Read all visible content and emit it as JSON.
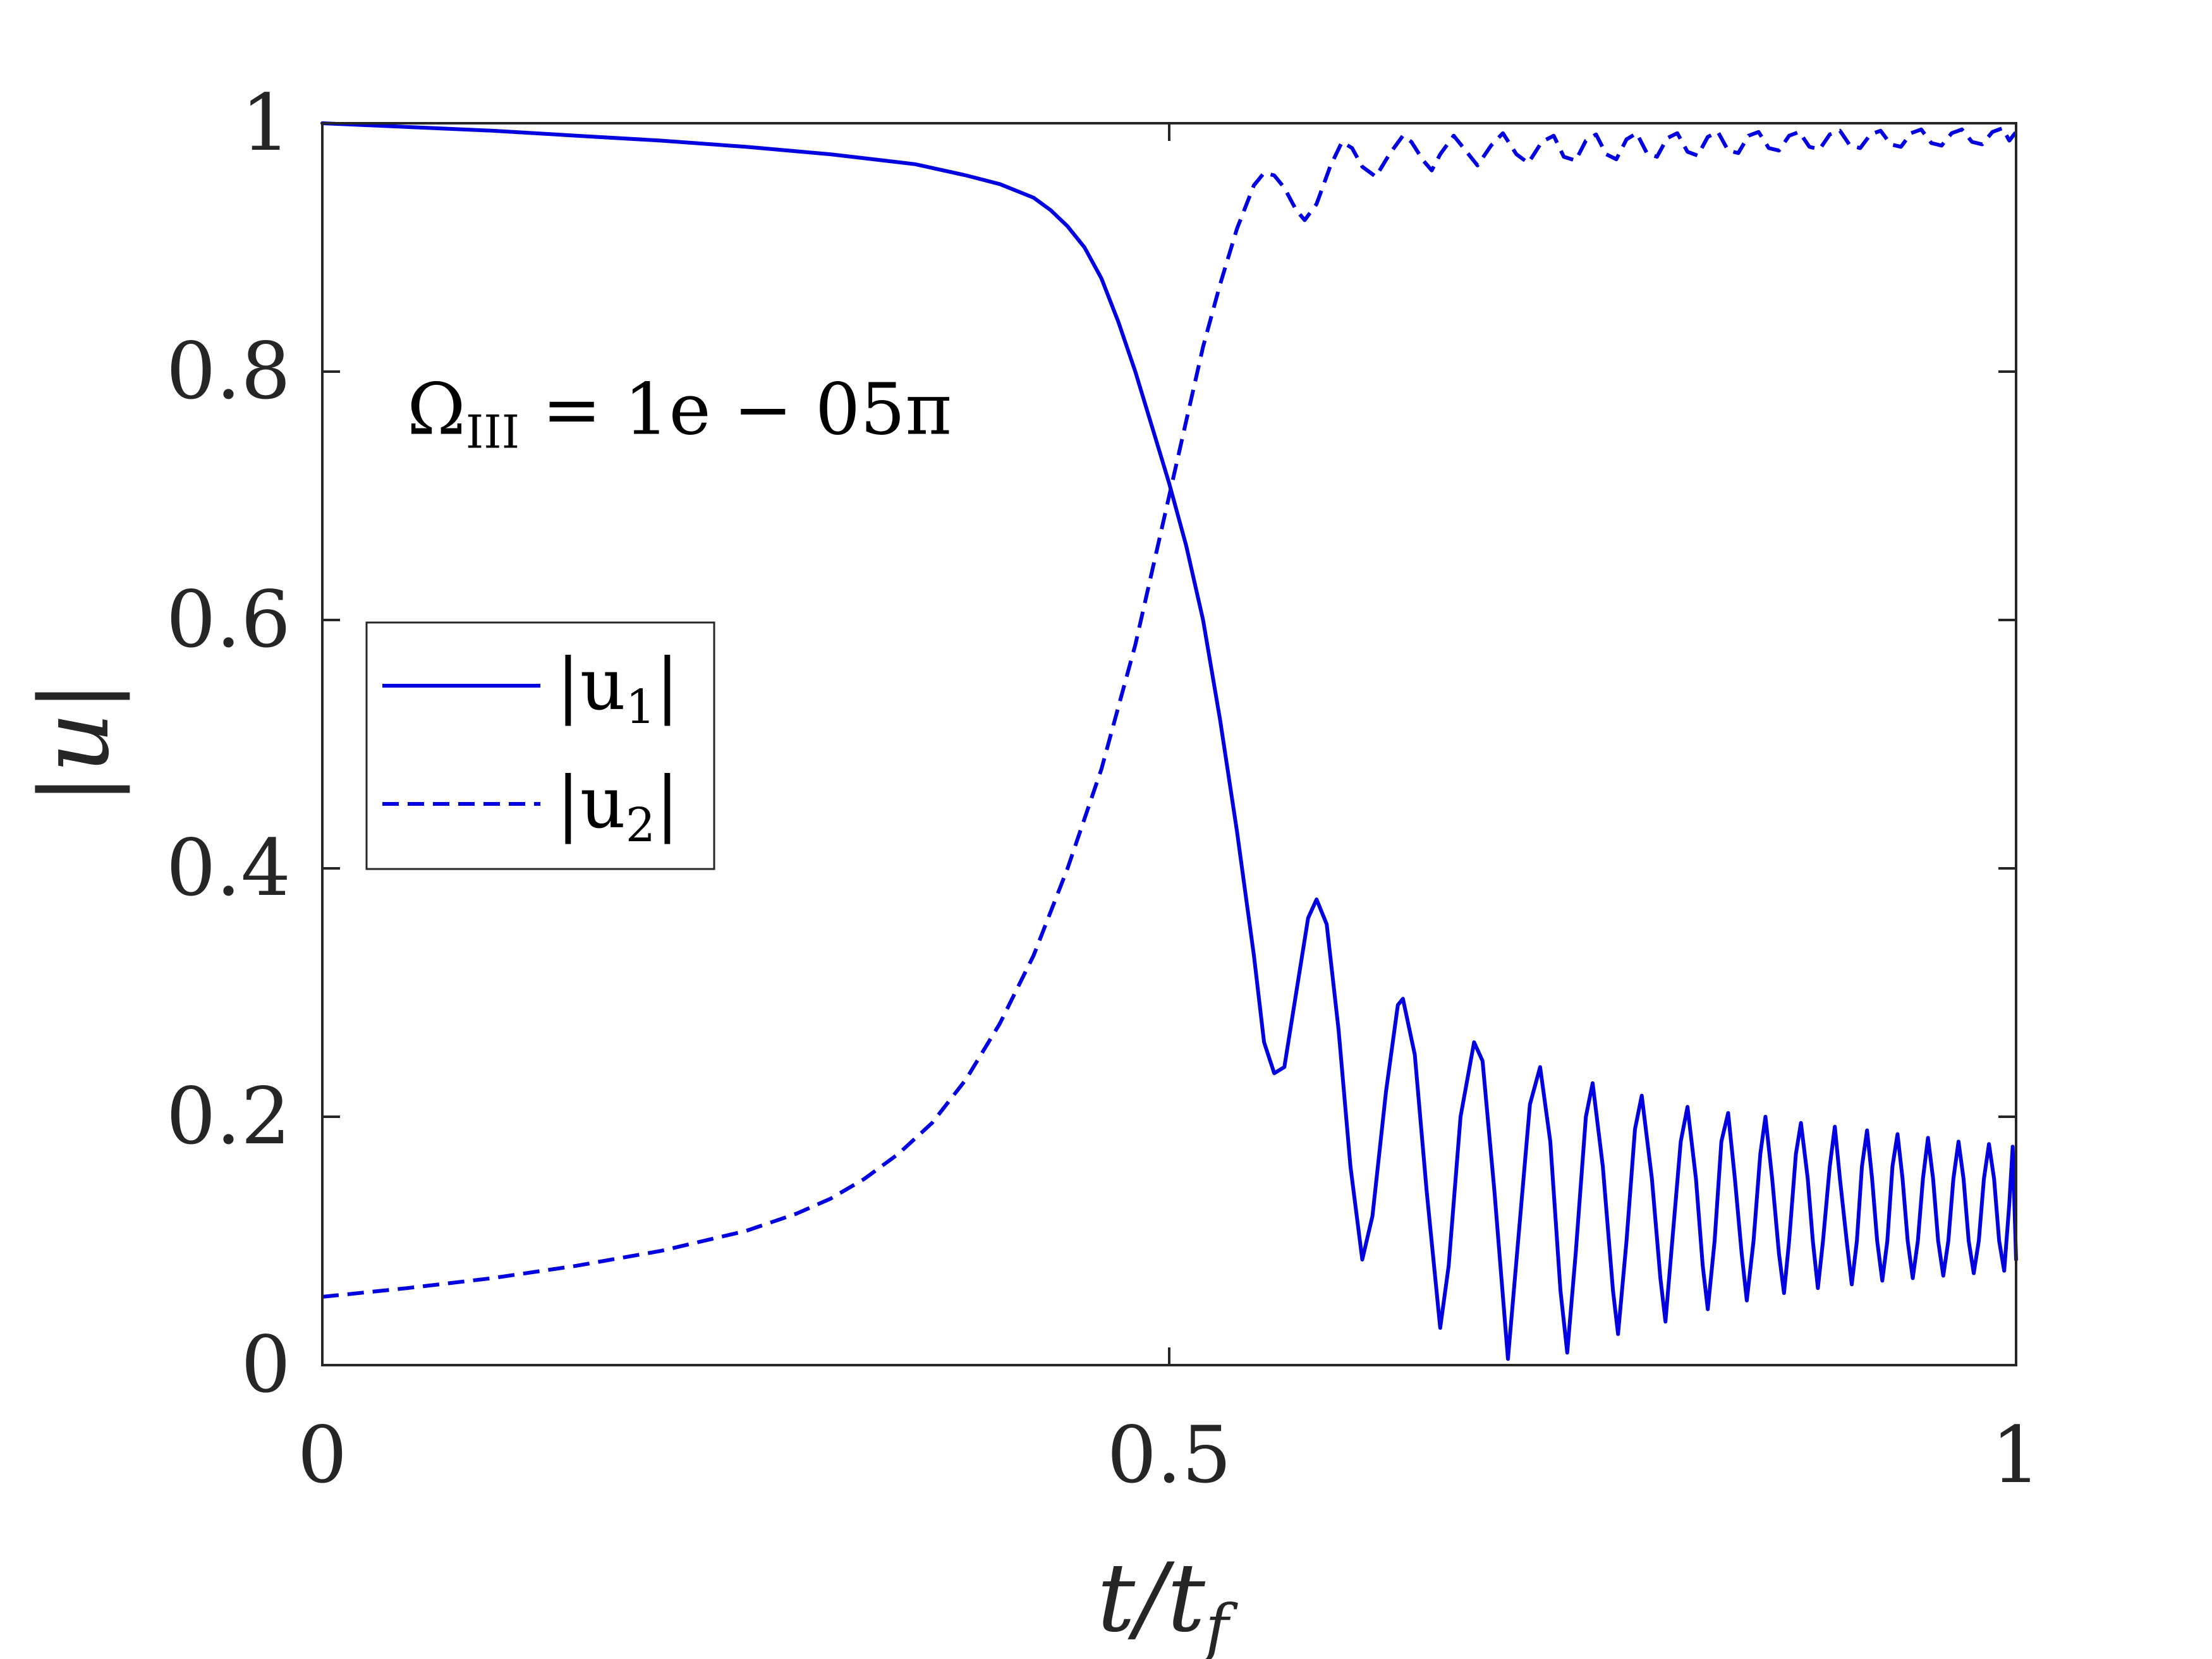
{
  "chart_data": {
    "type": "line",
    "xlabel": "t/t_f",
    "xlabel_parts": {
      "main": "t/t",
      "sub": "f"
    },
    "ylabel": "|u|",
    "xlim": [
      0,
      1
    ],
    "ylim": [
      0,
      1
    ],
    "xticks": [
      0,
      0.5,
      1
    ],
    "xtick_labels": [
      "0",
      "0.5",
      "1"
    ],
    "yticks": [
      0,
      0.2,
      0.4,
      0.6,
      0.8,
      1
    ],
    "ytick_labels": [
      "0",
      "0.2",
      "0.4",
      "0.6",
      "0.8",
      "1"
    ],
    "grid": false,
    "box": true,
    "annotation": {
      "text": "Ω_III = 1e − 05π",
      "symbol": "Ω",
      "subscript": "III",
      "rest": " = 1e − 05π",
      "x": 0.05,
      "y": 0.75
    },
    "legend": {
      "placement": "center-left",
      "entries": [
        {
          "label": "|u_1|",
          "base": "|u",
          "sub": "1",
          "close": "|",
          "style": "solid"
        },
        {
          "label": "|u_2|",
          "base": "|u",
          "sub": "2",
          "close": "|",
          "style": "dashed"
        }
      ]
    },
    "series": [
      {
        "label": "|u_1|",
        "color": "#0000e0",
        "style": "solid",
        "points": [
          [
            0.0,
            1.0
          ],
          [
            0.05,
            0.997
          ],
          [
            0.1,
            0.994
          ],
          [
            0.15,
            0.99
          ],
          [
            0.2,
            0.986
          ],
          [
            0.25,
            0.981
          ],
          [
            0.3,
            0.975
          ],
          [
            0.35,
            0.967
          ],
          [
            0.38,
            0.958
          ],
          [
            0.4,
            0.951
          ],
          [
            0.42,
            0.94
          ],
          [
            0.43,
            0.93
          ],
          [
            0.44,
            0.917
          ],
          [
            0.45,
            0.9
          ],
          [
            0.46,
            0.875
          ],
          [
            0.47,
            0.84
          ],
          [
            0.48,
            0.8
          ],
          [
            0.49,
            0.755
          ],
          [
            0.5,
            0.71
          ],
          [
            0.51,
            0.66
          ],
          [
            0.52,
            0.6
          ],
          [
            0.53,
            0.52
          ],
          [
            0.54,
            0.43
          ],
          [
            0.55,
            0.33
          ],
          [
            0.556,
            0.26
          ],
          [
            0.562,
            0.235
          ],
          [
            0.568,
            0.24
          ],
          [
            0.575,
            0.3
          ],
          [
            0.582,
            0.36
          ],
          [
            0.587,
            0.375
          ],
          [
            0.593,
            0.355
          ],
          [
            0.6,
            0.27
          ],
          [
            0.607,
            0.16
          ],
          [
            0.614,
            0.085
          ],
          [
            0.62,
            0.12
          ],
          [
            0.628,
            0.22
          ],
          [
            0.635,
            0.29
          ],
          [
            0.638,
            0.295
          ],
          [
            0.645,
            0.25
          ],
          [
            0.652,
            0.14
          ],
          [
            0.66,
            0.03
          ],
          [
            0.665,
            0.08
          ],
          [
            0.672,
            0.2
          ],
          [
            0.68,
            0.26
          ],
          [
            0.685,
            0.245
          ],
          [
            0.692,
            0.14
          ],
          [
            0.7,
            0.005
          ],
          [
            0.706,
            0.1
          ],
          [
            0.713,
            0.21
          ],
          [
            0.719,
            0.24
          ],
          [
            0.725,
            0.18
          ],
          [
            0.731,
            0.06
          ],
          [
            0.735,
            0.01
          ],
          [
            0.74,
            0.09
          ],
          [
            0.746,
            0.2
          ],
          [
            0.75,
            0.227
          ],
          [
            0.756,
            0.16
          ],
          [
            0.762,
            0.06
          ],
          [
            0.765,
            0.025
          ],
          [
            0.77,
            0.1
          ],
          [
            0.775,
            0.19
          ],
          [
            0.779,
            0.217
          ],
          [
            0.785,
            0.15
          ],
          [
            0.79,
            0.07
          ],
          [
            0.793,
            0.035
          ],
          [
            0.797,
            0.1
          ],
          [
            0.802,
            0.18
          ],
          [
            0.806,
            0.208
          ],
          [
            0.811,
            0.15
          ],
          [
            0.815,
            0.08
          ],
          [
            0.818,
            0.045
          ],
          [
            0.822,
            0.1
          ],
          [
            0.826,
            0.18
          ],
          [
            0.83,
            0.203
          ],
          [
            0.834,
            0.15
          ],
          [
            0.838,
            0.09
          ],
          [
            0.841,
            0.052
          ],
          [
            0.845,
            0.1
          ],
          [
            0.849,
            0.17
          ],
          [
            0.852,
            0.2
          ],
          [
            0.856,
            0.15
          ],
          [
            0.86,
            0.09
          ],
          [
            0.863,
            0.058
          ],
          [
            0.866,
            0.1
          ],
          [
            0.87,
            0.17
          ],
          [
            0.873,
            0.195
          ],
          [
            0.877,
            0.15
          ],
          [
            0.88,
            0.1
          ],
          [
            0.883,
            0.062
          ],
          [
            0.886,
            0.1
          ],
          [
            0.89,
            0.16
          ],
          [
            0.893,
            0.192
          ],
          [
            0.896,
            0.15
          ],
          [
            0.9,
            0.1
          ],
          [
            0.903,
            0.065
          ],
          [
            0.906,
            0.1
          ],
          [
            0.909,
            0.16
          ],
          [
            0.912,
            0.189
          ],
          [
            0.915,
            0.15
          ],
          [
            0.918,
            0.1
          ],
          [
            0.921,
            0.068
          ],
          [
            0.924,
            0.1
          ],
          [
            0.927,
            0.16
          ],
          [
            0.93,
            0.186
          ],
          [
            0.933,
            0.15
          ],
          [
            0.936,
            0.1
          ],
          [
            0.939,
            0.07
          ],
          [
            0.942,
            0.1
          ],
          [
            0.945,
            0.15
          ],
          [
            0.948,
            0.183
          ],
          [
            0.951,
            0.15
          ],
          [
            0.954,
            0.1
          ],
          [
            0.957,
            0.072
          ],
          [
            0.96,
            0.1
          ],
          [
            0.963,
            0.15
          ],
          [
            0.966,
            0.18
          ],
          [
            0.969,
            0.15
          ],
          [
            0.972,
            0.1
          ],
          [
            0.975,
            0.074
          ],
          [
            0.978,
            0.1
          ],
          [
            0.981,
            0.15
          ],
          [
            0.984,
            0.178
          ],
          [
            0.987,
            0.15
          ],
          [
            0.99,
            0.1
          ],
          [
            0.993,
            0.076
          ],
          [
            0.996,
            0.13
          ],
          [
            0.998,
            0.176
          ],
          [
            1.0,
            0.085
          ]
        ]
      },
      {
        "label": "|u_2|",
        "color": "#0000e0",
        "style": "dashed",
        "points": [
          [
            0.0,
            0.055
          ],
          [
            0.05,
            0.062
          ],
          [
            0.1,
            0.07
          ],
          [
            0.15,
            0.08
          ],
          [
            0.2,
            0.092
          ],
          [
            0.25,
            0.108
          ],
          [
            0.28,
            0.122
          ],
          [
            0.3,
            0.134
          ],
          [
            0.32,
            0.15
          ],
          [
            0.34,
            0.17
          ],
          [
            0.36,
            0.195
          ],
          [
            0.38,
            0.23
          ],
          [
            0.4,
            0.275
          ],
          [
            0.42,
            0.33
          ],
          [
            0.44,
            0.4
          ],
          [
            0.46,
            0.48
          ],
          [
            0.47,
            0.53
          ],
          [
            0.48,
            0.58
          ],
          [
            0.49,
            0.64
          ],
          [
            0.5,
            0.7
          ],
          [
            0.51,
            0.76
          ],
          [
            0.52,
            0.82
          ],
          [
            0.53,
            0.87
          ],
          [
            0.54,
            0.915
          ],
          [
            0.55,
            0.95
          ],
          [
            0.556,
            0.96
          ],
          [
            0.562,
            0.958
          ],
          [
            0.568,
            0.948
          ],
          [
            0.575,
            0.93
          ],
          [
            0.58,
            0.922
          ],
          [
            0.587,
            0.935
          ],
          [
            0.595,
            0.965
          ],
          [
            0.602,
            0.985
          ],
          [
            0.608,
            0.98
          ],
          [
            0.614,
            0.965
          ],
          [
            0.622,
            0.957
          ],
          [
            0.63,
            0.975
          ],
          [
            0.638,
            0.99
          ],
          [
            0.643,
            0.985
          ],
          [
            0.65,
            0.97
          ],
          [
            0.655,
            0.962
          ],
          [
            0.66,
            0.975
          ],
          [
            0.668,
            0.99
          ],
          [
            0.675,
            0.978
          ],
          [
            0.682,
            0.966
          ],
          [
            0.69,
            0.982
          ],
          [
            0.697,
            0.992
          ],
          [
            0.705,
            0.975
          ],
          [
            0.712,
            0.968
          ],
          [
            0.72,
            0.985
          ],
          [
            0.727,
            0.99
          ],
          [
            0.733,
            0.973
          ],
          [
            0.74,
            0.97
          ],
          [
            0.746,
            0.986
          ],
          [
            0.752,
            0.991
          ],
          [
            0.758,
            0.975
          ],
          [
            0.764,
            0.971
          ],
          [
            0.77,
            0.987
          ],
          [
            0.776,
            0.992
          ],
          [
            0.782,
            0.976
          ],
          [
            0.788,
            0.973
          ],
          [
            0.794,
            0.988
          ],
          [
            0.8,
            0.992
          ],
          [
            0.806,
            0.977
          ],
          [
            0.812,
            0.974
          ],
          [
            0.818,
            0.989
          ],
          [
            0.824,
            0.993
          ],
          [
            0.83,
            0.978
          ],
          [
            0.836,
            0.976
          ],
          [
            0.842,
            0.99
          ],
          [
            0.848,
            0.993
          ],
          [
            0.854,
            0.98
          ],
          [
            0.86,
            0.978
          ],
          [
            0.866,
            0.99
          ],
          [
            0.872,
            0.993
          ],
          [
            0.878,
            0.981
          ],
          [
            0.884,
            0.979
          ],
          [
            0.89,
            0.991
          ],
          [
            0.896,
            0.994
          ],
          [
            0.902,
            0.982
          ],
          [
            0.908,
            0.98
          ],
          [
            0.914,
            0.991
          ],
          [
            0.92,
            0.994
          ],
          [
            0.926,
            0.983
          ],
          [
            0.932,
            0.981
          ],
          [
            0.938,
            0.992
          ],
          [
            0.944,
            0.995
          ],
          [
            0.95,
            0.984
          ],
          [
            0.956,
            0.982
          ],
          [
            0.962,
            0.992
          ],
          [
            0.968,
            0.995
          ],
          [
            0.974,
            0.985
          ],
          [
            0.98,
            0.983
          ],
          [
            0.986,
            0.993
          ],
          [
            0.992,
            0.996
          ],
          [
            0.996,
            0.986
          ],
          [
            1.0,
            0.993
          ]
        ]
      }
    ]
  }
}
